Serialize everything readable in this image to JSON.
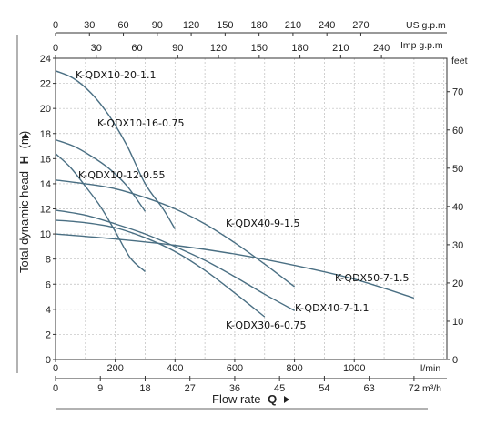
{
  "chart_data": {
    "type": "line",
    "left_axis": {
      "label_prefix": "Total dynamic head",
      "label_symbol": "H",
      "label_unit": "(m)",
      "range": [
        0,
        24
      ],
      "ticks": [
        0,
        2,
        4,
        6,
        8,
        10,
        12,
        14,
        16,
        18,
        20,
        22,
        24
      ]
    },
    "right_axis": {
      "unit": "feet",
      "ticks": [
        0,
        10,
        20,
        30,
        40,
        50,
        60,
        70
      ]
    },
    "top_axis_us": {
      "unit": "US g.p.m",
      "ticks": [
        0,
        30,
        60,
        90,
        120,
        150,
        180,
        210,
        240,
        270
      ]
    },
    "top_axis_imp": {
      "unit": "Imp g.p.m",
      "ticks": [
        0,
        30,
        60,
        90,
        120,
        150,
        180,
        210,
        240
      ]
    },
    "bottom_axis_lmin": {
      "unit": "l/min",
      "range": [
        0,
        1300
      ],
      "ticks": [
        0,
        200,
        400,
        600,
        800,
        1000
      ]
    },
    "bottom_axis_m3h": {
      "unit": "m³/h",
      "ticks": [
        0,
        9,
        18,
        27,
        36,
        45,
        54,
        63,
        72
      ]
    },
    "x_title_prefix": "Flow rate",
    "x_title_symbol": "Q",
    "grid": true,
    "series": [
      {
        "name": "K-QDX10-20-1.1",
        "x": [
          0,
          60,
          120,
          180,
          240,
          300,
          360,
          400
        ],
        "y": [
          23.0,
          22.4,
          21.2,
          19.4,
          17.0,
          14.0,
          12.0,
          10.4
        ]
      },
      {
        "name": "K-QDX10-16-0.75",
        "x": [
          0,
          60,
          120,
          180,
          240,
          300
        ],
        "y": [
          17.5,
          17.0,
          16.2,
          15.2,
          13.8,
          11.8
        ]
      },
      {
        "name": "K-QDX10-12-0.55",
        "x": [
          0,
          50,
          100,
          150,
          200,
          250,
          300
        ],
        "y": [
          16.4,
          15.3,
          13.8,
          12.2,
          10.2,
          8.1,
          7.0
        ]
      },
      {
        "name": "K-QDX40-9-1.5",
        "x": [
          0,
          100,
          200,
          300,
          400,
          500,
          600,
          700,
          800
        ],
        "y": [
          14.3,
          14.0,
          13.6,
          12.9,
          12.0,
          10.8,
          9.3,
          7.6,
          5.8
        ]
      },
      {
        "name": "K-QDX40-7-1.1",
        "x": [
          0,
          100,
          200,
          300,
          400,
          500,
          600,
          700,
          800
        ],
        "y": [
          11.9,
          11.5,
          10.8,
          10.0,
          9.0,
          7.9,
          6.6,
          5.2,
          3.9
        ]
      },
      {
        "name": "K-QDX30-6-0.75",
        "x": [
          0,
          100,
          200,
          300,
          400,
          500,
          600,
          700
        ],
        "y": [
          11.1,
          10.9,
          10.5,
          9.7,
          8.6,
          7.1,
          5.3,
          3.4
        ]
      },
      {
        "name": "K-QDX50-7-1.5",
        "x": [
          0,
          200,
          400,
          600,
          800,
          1000,
          1200,
          1200
        ],
        "y": [
          10.0,
          9.6,
          9.1,
          8.4,
          7.5,
          6.4,
          4.9,
          3.6
        ]
      }
    ]
  }
}
